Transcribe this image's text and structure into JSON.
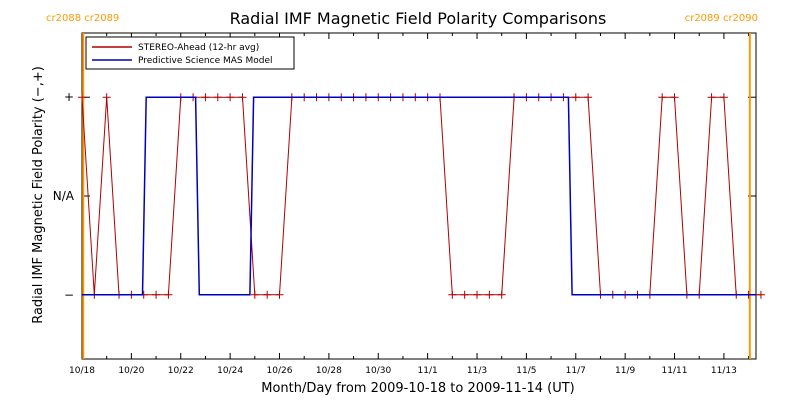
{
  "chart_data": {
    "type": "line",
    "title": "Radial IMF Magnetic Field Polarity Comparisons",
    "xlabel": "Month/Day from 2009-10-18 to 2009-11-14 (UT)",
    "ylabel": "Radial IMF Magnetic Field Polarity (−,+)",
    "x_start": "2009-10-18",
    "xlim_days": [
      0,
      27.3
    ],
    "ylim": [
      -1.65,
      1.65
    ],
    "x_ticks": [
      {
        "day": 0,
        "label": "10/18"
      },
      {
        "day": 2,
        "label": "10/20"
      },
      {
        "day": 4,
        "label": "10/22"
      },
      {
        "day": 6,
        "label": "10/24"
      },
      {
        "day": 8,
        "label": "10/26"
      },
      {
        "day": 10,
        "label": "10/28"
      },
      {
        "day": 12,
        "label": "10/30"
      },
      {
        "day": 14,
        "label": "11/1"
      },
      {
        "day": 16,
        "label": "11/3"
      },
      {
        "day": 18,
        "label": "11/5"
      },
      {
        "day": 20,
        "label": "11/7"
      },
      {
        "day": 22,
        "label": "11/9"
      },
      {
        "day": 24,
        "label": "11/11"
      },
      {
        "day": 26,
        "label": "11/13"
      }
    ],
    "y_ticks": [
      {
        "value": 1,
        "label": "+"
      },
      {
        "value": 0,
        "label": "N/A"
      },
      {
        "value": -1,
        "label": "−"
      }
    ],
    "carrington_markers": [
      {
        "day": 0.05,
        "label": "cr2088 cr2089",
        "align": "start"
      },
      {
        "day": 27.05,
        "label": "cr2089 cr2090",
        "align": "end"
      }
    ],
    "marker_color": "#ff9900",
    "legend_position": "top-left",
    "series": [
      {
        "name": "STEREO-Ahead (12-hr avg)",
        "color": "#b00000",
        "markers": "plus",
        "x": [
          0,
          0.5,
          1,
          1.5,
          2,
          2.5,
          3,
          3.5,
          4,
          4.5,
          5,
          5.5,
          6,
          6.5,
          7,
          7.5,
          8,
          8.5,
          9,
          9.5,
          10,
          10.5,
          11,
          11.5,
          12,
          12.5,
          13,
          13.5,
          14,
          14.5,
          15,
          15.5,
          16,
          16.5,
          17,
          17.5,
          18,
          18.5,
          19,
          19.5,
          20,
          20.5,
          21,
          21.5,
          22,
          22.5,
          23,
          23.5,
          24,
          24.5,
          25,
          25.5,
          26,
          26.5,
          27,
          27.5
        ],
        "values": [
          1,
          -1,
          1,
          -1,
          -1,
          -1,
          -1,
          -1,
          1,
          1,
          1,
          1,
          1,
          1,
          -1,
          -1,
          -1,
          1,
          1,
          1,
          1,
          1,
          1,
          1,
          1,
          1,
          1,
          1,
          1,
          1,
          -1,
          -1,
          -1,
          -1,
          -1,
          1,
          1,
          1,
          1,
          1,
          1,
          1,
          -1,
          -1,
          -1,
          -1,
          -1,
          1,
          1,
          -1,
          -1,
          1,
          1,
          -1,
          -1,
          -1
        ]
      },
      {
        "name": "Predictive Science MAS Model",
        "color": "#0000c0",
        "markers": "none",
        "x": [
          0,
          2.45,
          2.6,
          4.6,
          4.75,
          6.8,
          6.95,
          19.7,
          19.85,
          27.3
        ],
        "values": [
          -1,
          -1,
          1,
          1,
          -1,
          -1,
          1,
          1,
          -1,
          -1
        ]
      }
    ]
  }
}
